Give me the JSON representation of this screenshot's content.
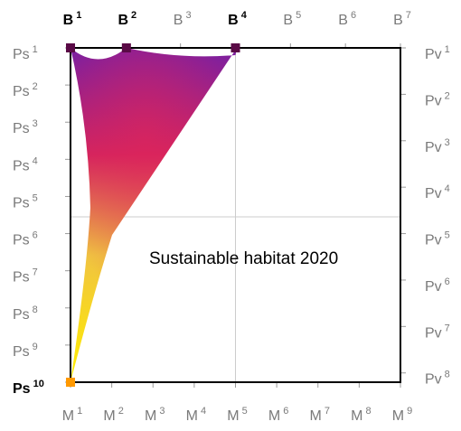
{
  "title": "Sustainable habitat 2020",
  "colors": {
    "frame": "#000000",
    "tick": "#9a9a9a",
    "guide": "#cccccc",
    "muted_label": "#7a7a7a",
    "marker_dark": "#5a0a46",
    "marker_orange": "#ff9900",
    "fill_stops": [
      "#7a1fa2",
      "#d4245e",
      "#f0c341",
      "#ffee00"
    ]
  },
  "top_axis": {
    "labels": [
      {
        "base": "B",
        "sup": "1",
        "bold": true
      },
      {
        "base": "B",
        "sup": "2",
        "bold": true
      },
      {
        "base": "B",
        "sup": "3",
        "bold": false
      },
      {
        "base": "B",
        "sup": "4",
        "bold": true
      },
      {
        "base": "B",
        "sup": "5",
        "bold": false
      },
      {
        "base": "B",
        "sup": "6",
        "bold": false
      },
      {
        "base": "B",
        "sup": "7",
        "bold": false
      }
    ]
  },
  "bottom_axis": {
    "labels": [
      {
        "base": "M",
        "sup": "1"
      },
      {
        "base": "M",
        "sup": "2"
      },
      {
        "base": "M",
        "sup": "3"
      },
      {
        "base": "M",
        "sup": "4"
      },
      {
        "base": "M",
        "sup": "5"
      },
      {
        "base": "M",
        "sup": "6"
      },
      {
        "base": "M",
        "sup": "7"
      },
      {
        "base": "M",
        "sup": "8"
      },
      {
        "base": "M",
        "sup": "9"
      }
    ]
  },
  "left_axis": {
    "labels": [
      {
        "base": "Ps",
        "sup": "1",
        "bold": false
      },
      {
        "base": "Ps",
        "sup": "2",
        "bold": false
      },
      {
        "base": "Ps",
        "sup": "3",
        "bold": false
      },
      {
        "base": "Ps",
        "sup": "4",
        "bold": false
      },
      {
        "base": "Ps",
        "sup": "5",
        "bold": false
      },
      {
        "base": "Ps",
        "sup": "6",
        "bold": false
      },
      {
        "base": "Ps",
        "sup": "7",
        "bold": false
      },
      {
        "base": "Ps",
        "sup": "8",
        "bold": false
      },
      {
        "base": "Ps",
        "sup": "9",
        "bold": false
      },
      {
        "base": "Ps",
        "sup": "10",
        "bold": true
      }
    ]
  },
  "right_axis": {
    "labels": [
      {
        "base": "Pv",
        "sup": "1"
      },
      {
        "base": "Pv",
        "sup": "2"
      },
      {
        "base": "Pv",
        "sup": "3"
      },
      {
        "base": "Pv",
        "sup": "4"
      },
      {
        "base": "Pv",
        "sup": "5"
      },
      {
        "base": "Pv",
        "sup": "6"
      },
      {
        "base": "Pv",
        "sup": "7"
      },
      {
        "base": "Pv",
        "sup": "8"
      }
    ]
  },
  "markers": [
    {
      "name": "marker-b1-ps1",
      "color": "marker_dark"
    },
    {
      "name": "marker-b2",
      "color": "marker_dark"
    },
    {
      "name": "marker-b4",
      "color": "marker_dark"
    },
    {
      "name": "marker-m1-ps10",
      "color": "marker_orange"
    }
  ]
}
